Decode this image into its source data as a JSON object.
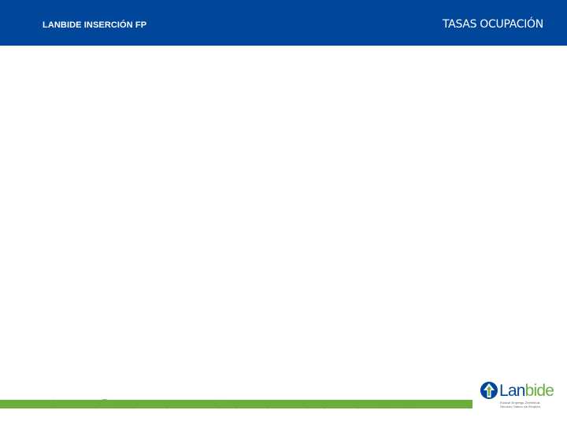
{
  "header": {
    "left_title": "LANBIDE INSERCIÓN FP",
    "right_title": "TASAS OCUPACIÓN"
  },
  "logo": {
    "name_part1": "Lan",
    "name_part2": "bide",
    "tagline_line1": "Euskal Enplegu Zerbitzua",
    "tagline_line2": "Servicio Vasco de Empleo"
  },
  "colors": {
    "header_bg": "#00479b",
    "accent_green": "#6bae3c",
    "text_on_header": "#ffffff"
  },
  "icons": {
    "logo_mark": "lanbide-arrow-logo-icon"
  }
}
